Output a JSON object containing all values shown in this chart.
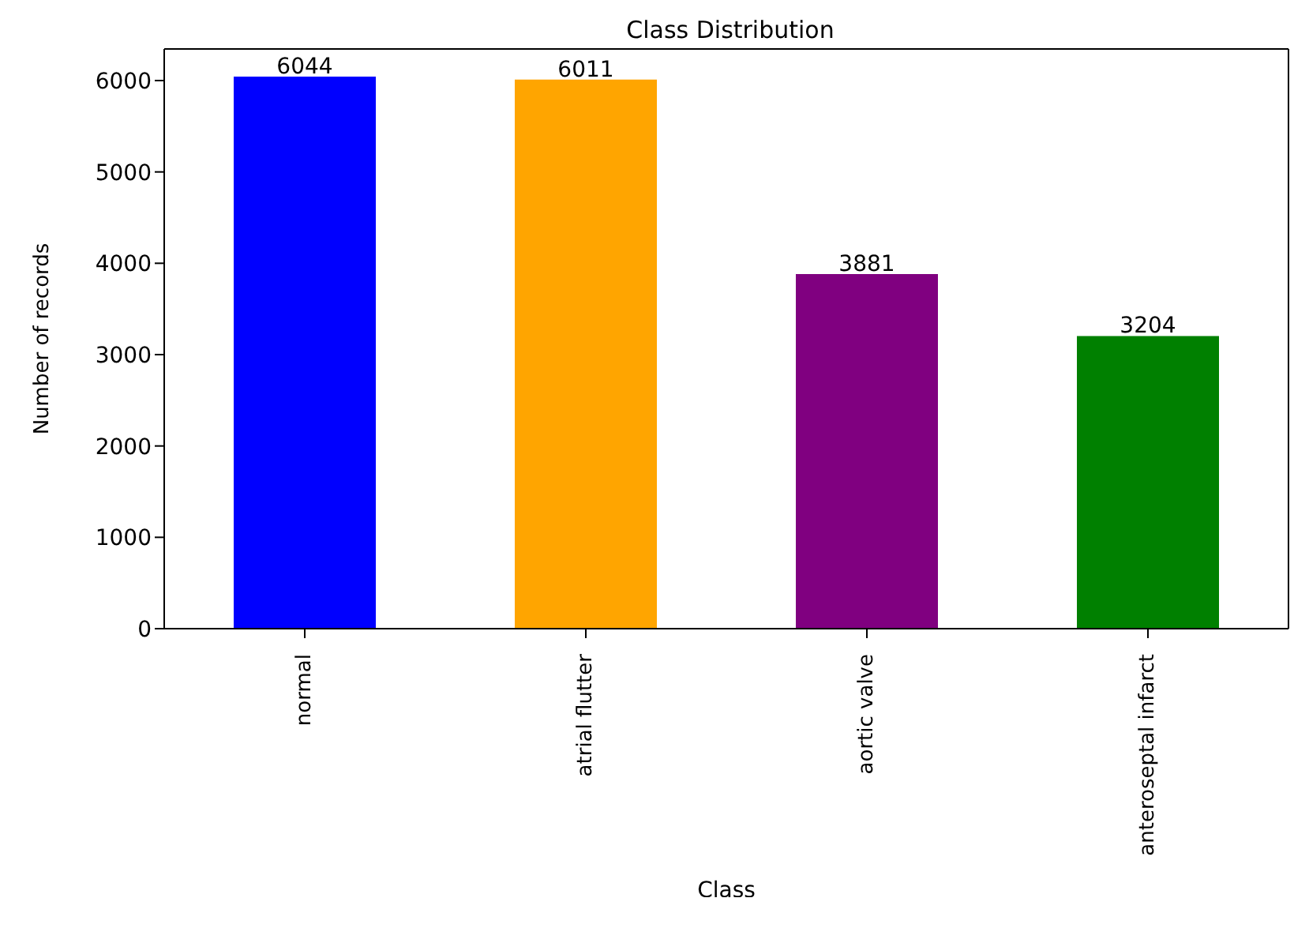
{
  "chart_data": {
    "type": "bar",
    "title": "Class Distribution",
    "xlabel": "Class",
    "ylabel": "Number of records",
    "categories": [
      "normal",
      "atrial flutter",
      "aortic valve",
      "anteroseptal infarct"
    ],
    "values": [
      6044,
      6011,
      3881,
      3204
    ],
    "colors": [
      "#0000ff",
      "#ffa500",
      "#800080",
      "#008000"
    ],
    "ylim": [
      0,
      6346
    ],
    "yticks": [
      0,
      1000,
      2000,
      3000,
      4000,
      5000,
      6000
    ],
    "grid": false,
    "data_labels": true
  }
}
